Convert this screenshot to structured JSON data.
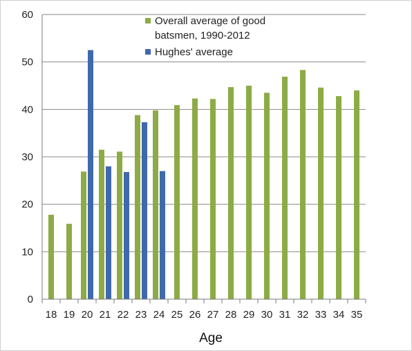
{
  "chart_data": {
    "type": "bar",
    "title": "",
    "xlabel": "Age",
    "ylabel": "",
    "categories": [
      "18",
      "19",
      "20",
      "21",
      "22",
      "23",
      "24",
      "25",
      "26",
      "27",
      "28",
      "29",
      "30",
      "31",
      "32",
      "33",
      "34",
      "35"
    ],
    "ylim": [
      0,
      60
    ],
    "yticks": [
      0,
      10,
      20,
      30,
      40,
      50,
      60
    ],
    "grid": true,
    "legend_position": "top-center",
    "series": [
      {
        "name": "Overall average of good batsmen, 1990-2012",
        "legend_lines": [
          "Overall average of good",
          "batsmen, 1990-2012"
        ],
        "color": "#8dab45",
        "values": [
          17.8,
          15.9,
          26.9,
          31.5,
          31.1,
          38.8,
          39.8,
          40.9,
          42.3,
          42.2,
          44.7,
          45.0,
          43.5,
          46.9,
          48.3,
          44.6,
          42.8,
          44.0
        ]
      },
      {
        "name": "Hughes' average",
        "legend_lines": [
          "Hughes' average"
        ],
        "color": "#3f69ad",
        "values": [
          null,
          null,
          52.5,
          28.0,
          26.8,
          37.3,
          27.0,
          null,
          null,
          null,
          null,
          null,
          null,
          null,
          null,
          null,
          null,
          null
        ]
      }
    ]
  }
}
